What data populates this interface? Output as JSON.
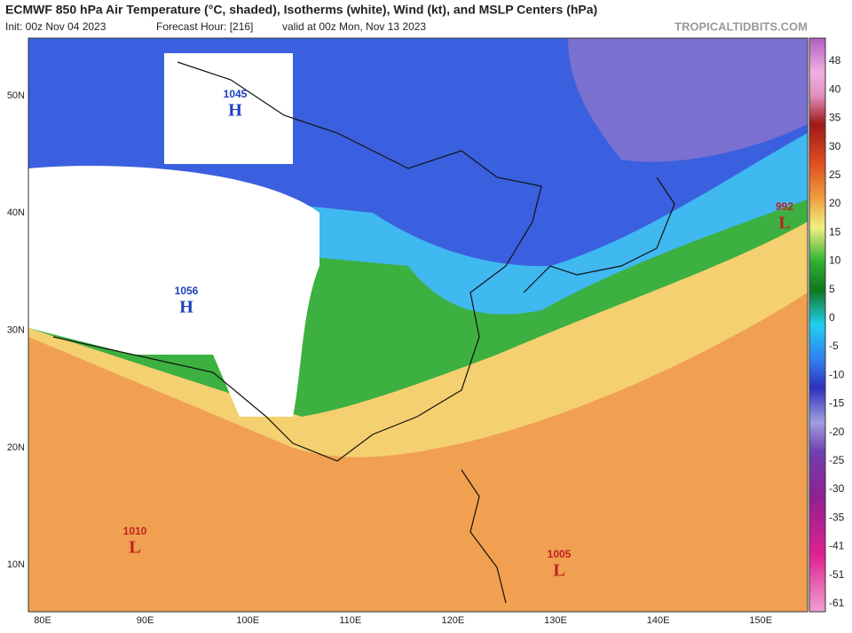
{
  "header": {
    "title": "ECMWF 850 hPa Air Temperature (°C, shaded), Isotherms (white), Wind (kt), and MSLP Centers (hPa)",
    "init": "Init: 00z Nov 04 2023",
    "forecast": "Forecast Hour: [216]",
    "valid": "valid at 00z Mon, Nov 13 2023",
    "site": "TROPICALTIDBITS.COM"
  },
  "axes": {
    "lon_labels": [
      "80E",
      "90E",
      "100E",
      "110E",
      "120E",
      "130E",
      "140E",
      "150E"
    ],
    "lat_labels": [
      "50N",
      "40N",
      "30N",
      "20N",
      "10N"
    ]
  },
  "colorbar": {
    "labels": [
      48,
      40,
      35,
      30,
      25,
      20,
      15,
      10,
      5,
      0,
      -5,
      -10,
      -15,
      -20,
      -25,
      -30,
      -35,
      -41,
      -51,
      -61
    ]
  },
  "centers": [
    {
      "value": "1045",
      "letter": "H"
    },
    {
      "value": "1056",
      "letter": "H"
    },
    {
      "value": "992",
      "letter": "L"
    },
    {
      "value": "1010",
      "letter": "L"
    },
    {
      "value": "1005",
      "letter": "L"
    }
  ]
}
